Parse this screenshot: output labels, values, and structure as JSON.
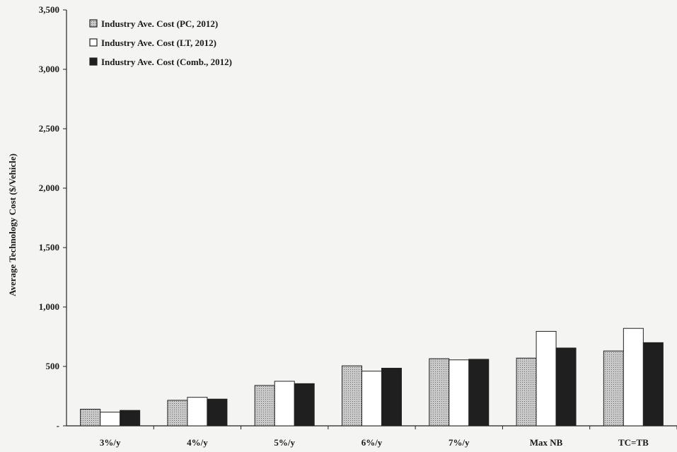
{
  "chart_data": {
    "type": "bar",
    "categories": [
      "3%/y",
      "4%/y",
      "5%/y",
      "6%/y",
      "7%/y",
      "Max NB",
      "TC=TB"
    ],
    "series": [
      {
        "name": "Industry Ave. Cost  (PC, 2012)",
        "values": [
          140,
          215,
          340,
          505,
          565,
          570,
          630
        ],
        "color": "#b8b8b8",
        "pattern": "dotted"
      },
      {
        "name": "Industry Ave. Cost  (LT, 2012)",
        "values": [
          115,
          240,
          375,
          460,
          555,
          795,
          820
        ],
        "color": "#ffffff",
        "pattern": "solid"
      },
      {
        "name": "Industry Ave. Cost  (Comb., 2012)",
        "values": [
          130,
          225,
          355,
          485,
          560,
          655,
          700
        ],
        "color": "#1f1f1f",
        "pattern": "solid"
      }
    ],
    "yticks": [
      "-",
      "500",
      "1,000",
      "1,500",
      "2,000",
      "2,500",
      "3,000",
      "3,500"
    ],
    "ytick_values": [
      0,
      500,
      1000,
      1500,
      2000,
      2500,
      3000,
      3500
    ],
    "ylabel": "Average Technology Cost ($/Vehicle)",
    "xlabel": "",
    "ylim": [
      0,
      3500
    ],
    "legend_position": "top-left",
    "grid": false
  }
}
